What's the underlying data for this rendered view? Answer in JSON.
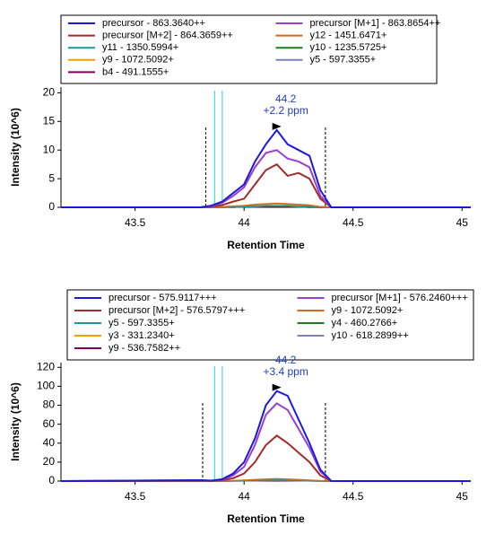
{
  "chart_data": [
    {
      "type": "line",
      "xlabel": "Retention Time",
      "ylabel": "Intensity (10^6)",
      "xlim": [
        43.16,
        45.04
      ],
      "ylim": [
        0,
        21
      ],
      "xticks": [
        43.5,
        44.0,
        44.5,
        45.0
      ],
      "yticks": [
        0,
        5,
        10,
        15,
        20
      ],
      "x": [
        43.16,
        43.8,
        43.85,
        43.9,
        43.95,
        44.0,
        44.05,
        44.1,
        44.15,
        44.2,
        44.25,
        44.3,
        44.35,
        44.4,
        45.04
      ],
      "series": [
        {
          "name": "precursor - 863.3640++",
          "color": "#1a1ad8",
          "values": [
            0,
            0,
            0.3,
            1,
            2.5,
            4,
            8,
            11,
            13.5,
            11,
            10,
            9,
            3,
            0,
            0
          ]
        },
        {
          "name": "precursor [M+1] - 863.8654++",
          "color": "#9a3fd0",
          "values": [
            0,
            0,
            0.2,
            0.8,
            2,
            3.5,
            7,
            9.5,
            10,
            8.5,
            8,
            7,
            2,
            0,
            0
          ]
        },
        {
          "name": "precursor [M+2] - 864.3659++",
          "color": "#a52a2a",
          "values": [
            0,
            0,
            0.1,
            0.4,
            1,
            1.5,
            4,
            6.5,
            7.5,
            5.5,
            6,
            5,
            1.5,
            0,
            0
          ]
        },
        {
          "name": "y12 - 1451.6471+",
          "color": "#d2691e",
          "values": [
            0,
            0,
            0,
            0.1,
            0.2,
            0.3,
            0.5,
            0.6,
            0.7,
            0.6,
            0.5,
            0.4,
            0.1,
            0,
            0
          ]
        },
        {
          "name": "y11 - 1350.5994+",
          "color": "#1a9a9a",
          "values": [
            0,
            0,
            0,
            0,
            0.1,
            0.1,
            0.2,
            0.3,
            0.3,
            0.3,
            0.2,
            0.2,
            0.1,
            0,
            0
          ]
        },
        {
          "name": "y10 - 1235.5725+",
          "color": "#1f7a1f",
          "values": [
            0,
            0,
            0,
            0,
            0.1,
            0.1,
            0.2,
            0.2,
            0.2,
            0.2,
            0.2,
            0.1,
            0,
            0,
            0
          ]
        },
        {
          "name": "y9 - 1072.5092+",
          "color": "#f0a000",
          "values": [
            0,
            0,
            0,
            0.1,
            0.2,
            0.3,
            0.4,
            0.5,
            0.6,
            0.5,
            0.4,
            0.3,
            0.1,
            0,
            0
          ]
        },
        {
          "name": "y5 - 597.3355+",
          "color": "#8080c0",
          "values": [
            0,
            0,
            0,
            0,
            0.1,
            0.1,
            0.1,
            0.2,
            0.2,
            0.2,
            0.1,
            0.1,
            0,
            0,
            0
          ]
        },
        {
          "name": "b4 - 491.1555+",
          "color": "#800060",
          "values": [
            0,
            0,
            0,
            0,
            0,
            0.1,
            0.1,
            0.1,
            0.1,
            0.1,
            0.1,
            0,
            0,
            0,
            0
          ]
        }
      ],
      "id_times": [
        43.865,
        43.9
      ],
      "boundaries": [
        43.824,
        44.373
      ],
      "peak_label": {
        "x": 44.15,
        "y": 13.5,
        "lines": [
          "44.2",
          "+2.2 ppm"
        ]
      }
    },
    {
      "type": "line",
      "xlabel": "Retention Time",
      "ylabel": "Intensity (10^6)",
      "xlim": [
        43.16,
        45.04
      ],
      "ylim": [
        0,
        125
      ],
      "xticks": [
        43.5,
        44.0,
        44.5,
        45.0
      ],
      "yticks": [
        0,
        20,
        40,
        60,
        80,
        100,
        120
      ],
      "x": [
        43.16,
        43.8,
        43.85,
        43.9,
        43.95,
        44.0,
        44.05,
        44.1,
        44.15,
        44.2,
        44.25,
        44.3,
        44.35,
        44.4,
        45.04
      ],
      "series": [
        {
          "name": "precursor - 575.9117+++",
          "color": "#1a1ad8",
          "values": [
            0,
            1,
            0.5,
            2,
            8,
            20,
            45,
            80,
            95,
            90,
            65,
            40,
            12,
            0,
            0
          ]
        },
        {
          "name": "precursor [M+1] - 576.2460+++",
          "color": "#9a3fd0",
          "values": [
            0,
            0.8,
            0.4,
            1.5,
            6,
            15,
            38,
            70,
            82,
            75,
            55,
            35,
            10,
            0,
            0
          ]
        },
        {
          "name": "precursor [M+2] - 576.5797+++",
          "color": "#a52a2a",
          "values": [
            0,
            0.4,
            0.2,
            1,
            3,
            8,
            20,
            38,
            48,
            40,
            30,
            20,
            6,
            0,
            0
          ]
        },
        {
          "name": "y9 - 1072.5092+",
          "color": "#d2691e",
          "values": [
            0,
            0,
            0,
            0.2,
            0.5,
            1,
            1.5,
            2,
            2.5,
            2,
            1.5,
            1,
            0.3,
            0,
            0
          ]
        },
        {
          "name": "y5 - 597.3355+",
          "color": "#1a9a9a",
          "values": [
            0,
            0,
            0,
            0.1,
            0.3,
            0.6,
            1,
            1.3,
            1.5,
            1.3,
            1,
            0.6,
            0.2,
            0,
            0
          ]
        },
        {
          "name": "y4 - 460.2766+",
          "color": "#1f7a1f",
          "values": [
            0,
            0,
            0,
            0.1,
            0.2,
            0.4,
            0.7,
            1,
            1.1,
            1,
            0.7,
            0.4,
            0.1,
            0,
            0
          ]
        },
        {
          "name": "y3 - 331.2340+",
          "color": "#f0a000",
          "values": [
            0,
            0,
            0,
            0.1,
            0.2,
            0.4,
            0.8,
            1.1,
            1.3,
            1.1,
            0.8,
            0.5,
            0.1,
            0,
            0
          ]
        },
        {
          "name": "y10 - 618.2899++",
          "color": "#8080c0",
          "values": [
            0,
            0,
            0,
            0,
            0.1,
            0.2,
            0.4,
            0.6,
            0.7,
            0.6,
            0.4,
            0.2,
            0,
            0,
            0
          ]
        },
        {
          "name": "y9 - 536.7582++",
          "color": "#800060",
          "values": [
            0,
            0,
            0,
            0,
            0.1,
            0.2,
            0.3,
            0.4,
            0.5,
            0.4,
            0.3,
            0.2,
            0,
            0,
            0
          ]
        }
      ],
      "id_times": [
        43.865,
        43.9
      ],
      "boundaries": [
        43.81,
        44.373
      ],
      "peak_label": {
        "x": 44.15,
        "y": 95,
        "lines": [
          "44.2",
          "+3.4 ppm"
        ]
      }
    }
  ]
}
